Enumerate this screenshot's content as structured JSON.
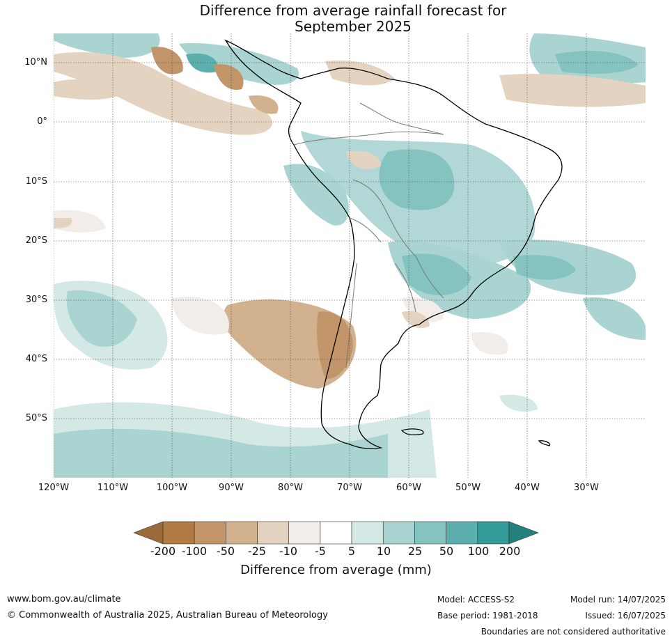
{
  "title_line1": "Difference from average rainfall forecast for",
  "title_line2": "September 2025",
  "lat_labels": [
    "10°N",
    "0°",
    "10°S",
    "20°S",
    "30°S",
    "40°S",
    "50°S"
  ],
  "lon_labels": [
    "120°W",
    "110°W",
    "100°W",
    "90°W",
    "80°W",
    "70°W",
    "60°W",
    "50°W",
    "40°W",
    "30°W"
  ],
  "colorbar": {
    "ticks": [
      "-200",
      "-100",
      "-50",
      "-25",
      "-10",
      "-5",
      "5",
      "10",
      "25",
      "50",
      "100",
      "200"
    ],
    "colors": [
      "#9b6a3a",
      "#b07a43",
      "#c19469",
      "#d2b18f",
      "#e4d3c1",
      "#f2ede8",
      "#ffffff",
      "#d4e8e6",
      "#a9d4d2",
      "#85c3c0",
      "#5cafac",
      "#329a97",
      "#23807d"
    ],
    "label": "Difference from average (mm)"
  },
  "footer": {
    "website": "www.bom.gov.au/climate",
    "copyright": "© Commonwealth of Australia 2025, Australian Bureau of Meteorology",
    "model": "Model: ACCESS-S2",
    "base_period": "Base period: 1981-2018",
    "model_run": "Model run: 14/07/2025",
    "issued": "Issued: 16/07/2025",
    "disclaimer": "Boundaries are not considered authoritative"
  }
}
